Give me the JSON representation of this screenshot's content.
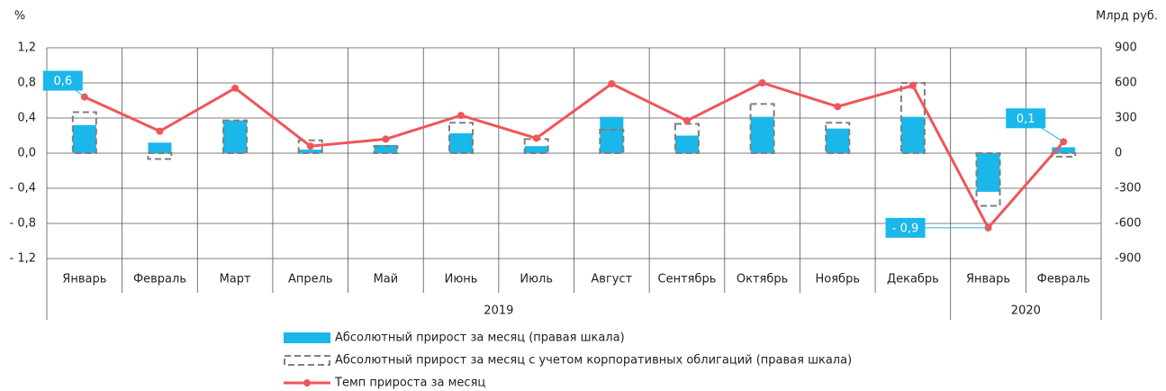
{
  "chart_data": {
    "type": "combo",
    "y_unit_label": "%",
    "y2_unit_label": "Млрд руб.",
    "categories": [
      "Январь",
      "Февраль",
      "Март",
      "Апрель",
      "Май",
      "Июнь",
      "Июль",
      "Август",
      "Сентябрь",
      "Октябрь",
      "Ноябрь",
      "Декабрь",
      "Январь",
      "Февраль"
    ],
    "groups": [
      {
        "label": "2019",
        "span": 12
      },
      {
        "label": "2020",
        "span": 2
      }
    ],
    "ylim": [
      -1.2,
      1.2
    ],
    "yticks": [
      {
        "value": 1.2,
        "label": "1,2"
      },
      {
        "value": 0.8,
        "label": "0,8"
      },
      {
        "value": 0.4,
        "label": "0,4"
      },
      {
        "value": 0,
        "label": "0,0"
      },
      {
        "value": -0.4,
        "label": "- 0,4"
      },
      {
        "value": -0.8,
        "label": "- 0,8"
      },
      {
        "value": -1.2,
        "label": "- 1,2"
      }
    ],
    "y2lim": [
      -900,
      900
    ],
    "y2ticks": [
      900,
      600,
      300,
      0,
      -300,
      -600,
      -900
    ],
    "grid": true,
    "series": [
      {
        "name": "Абсолютный прирост за месяц (правая шкала)",
        "type": "bar",
        "axis": "y2",
        "color": "#1ab7ea",
        "values": [
          240,
          90,
          280,
          30,
          70,
          170,
          60,
          310,
          150,
          310,
          210,
          310,
          -330,
          50
        ]
      },
      {
        "name": "Абсолютный прирост за месяц с учетом корпоративных облигаций (правая шкала)",
        "type": "dashed-bar",
        "axis": "y2",
        "color": "#7f7f7f",
        "values": [
          350,
          -50,
          280,
          110,
          60,
          260,
          120,
          200,
          250,
          420,
          260,
          600,
          -450,
          -30
        ]
      },
      {
        "name": "Темп прироста за месяц",
        "type": "line",
        "axis": "y",
        "color": "#f0555a",
        "values": [
          0.64,
          0.25,
          0.74,
          0.08,
          0.16,
          0.43,
          0.17,
          0.79,
          0.37,
          0.8,
          0.53,
          0.77,
          -0.85,
          0.13
        ],
        "value_labels": [
          "0,6",
          null,
          null,
          null,
          null,
          null,
          null,
          null,
          null,
          null,
          null,
          null,
          "- 0,9",
          "0,1"
        ]
      }
    ]
  }
}
